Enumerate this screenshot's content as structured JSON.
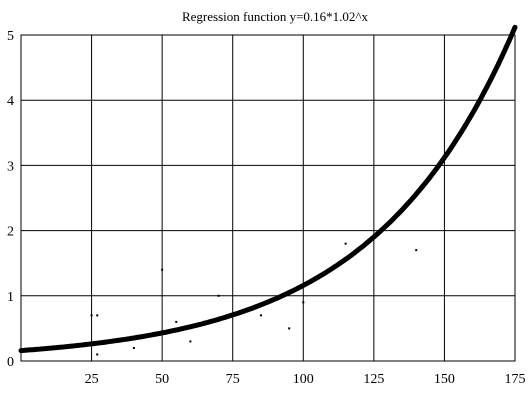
{
  "chart_data": {
    "type": "scatter",
    "title": "Regression function y=0.16*1.02^x",
    "xlabel": "",
    "ylabel": "",
    "xlim": [
      0,
      175
    ],
    "ylim": [
      0,
      5
    ],
    "grid": true,
    "x_ticks": [
      25,
      50,
      75,
      100,
      125,
      150,
      175
    ],
    "y_ticks": [
      0,
      1,
      2,
      3,
      4,
      5
    ],
    "x_tick_labels": [
      "25",
      "50",
      "75",
      "100",
      "125",
      "150",
      "175"
    ],
    "y_tick_labels": [
      "0",
      "1",
      "2",
      "3",
      "4",
      "5"
    ],
    "points": [
      {
        "x": 25,
        "y": 0.7
      },
      {
        "x": 27,
        "y": 0.7
      },
      {
        "x": 27,
        "y": 0.1
      },
      {
        "x": 40,
        "y": 0.2
      },
      {
        "x": 50,
        "y": 1.4
      },
      {
        "x": 55,
        "y": 0.6
      },
      {
        "x": 60,
        "y": 0.3
      },
      {
        "x": 65,
        "y": 0.6
      },
      {
        "x": 70,
        "y": 1.0
      },
      {
        "x": 85,
        "y": 0.7
      },
      {
        "x": 95,
        "y": 0.5
      },
      {
        "x": 100,
        "y": 0.9
      },
      {
        "x": 115,
        "y": 1.8
      },
      {
        "x": 125,
        "y": 1.9
      },
      {
        "x": 140,
        "y": 1.7
      },
      {
        "x": 150,
        "y": 3.1
      }
    ],
    "regression": {
      "a": 0.16,
      "b": 1.02,
      "x_from": 0,
      "x_to": 175
    }
  }
}
